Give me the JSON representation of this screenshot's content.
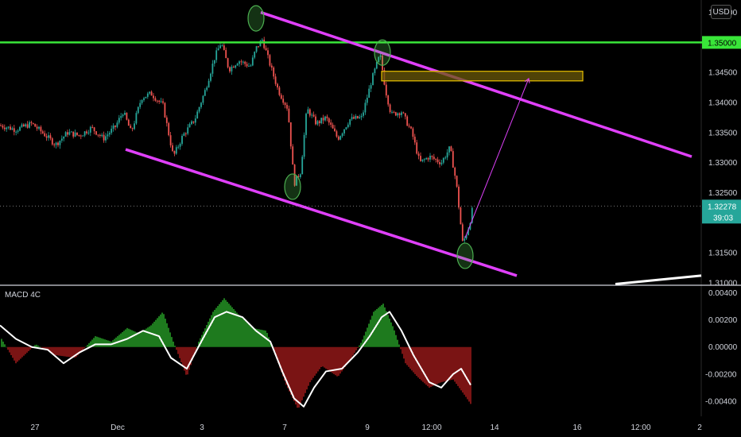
{
  "currency": "USD",
  "indicator_label": "MACD 4C",
  "current_price": "1.32278",
  "countdown": "39:03",
  "level_price": "1.35000",
  "colors": {
    "background": "#000000",
    "up_candle": "#26a69a",
    "down_candle": "#ef5350",
    "channel": "#e040fb",
    "resistance": "#39e639",
    "zone_fill": "#6b5a0a",
    "zone_border": "#e8c000",
    "macd_pos": "#33cc33",
    "macd_neg": "#cc2222",
    "signal": "#ffffff"
  },
  "chart_data": [
    {
      "type": "line",
      "series": [
        {
          "name": "",
          "values": []
        }
      ],
      "y_ticks": [
        "1.35500",
        "1.35000",
        "1.34500",
        "1.34000",
        "1.33500",
        "1.33000",
        "1.32500",
        "1.32000",
        "1.31500",
        "1.31000"
      ],
      "x_ticks": [
        "27",
        "Dec",
        "3",
        "7",
        "9",
        "12:00",
        "14",
        "16",
        "12:00",
        "2"
      ],
      "ylim": [
        1.31,
        1.356
      ],
      "close_path": [
        [
          0,
          1.3362
        ],
        [
          20,
          1.3355
        ],
        [
          40,
          1.3365
        ],
        [
          55,
          1.3348
        ],
        [
          70,
          1.333
        ],
        [
          85,
          1.335
        ],
        [
          100,
          1.3345
        ],
        [
          115,
          1.3358
        ],
        [
          130,
          1.334
        ],
        [
          145,
          1.336
        ],
        [
          155,
          1.3385
        ],
        [
          165,
          1.335
        ],
        [
          178,
          1.3408
        ],
        [
          190,
          1.3415
        ],
        [
          205,
          1.3395
        ],
        [
          218,
          1.331
        ],
        [
          230,
          1.3345
        ],
        [
          245,
          1.3372
        ],
        [
          258,
          1.342
        ],
        [
          270,
          1.3475
        ],
        [
          278,
          1.35
        ],
        [
          288,
          1.3455
        ],
        [
          300,
          1.347
        ],
        [
          315,
          1.346
        ],
        [
          322,
          1.349
        ],
        [
          330,
          1.3505
        ],
        [
          338,
          1.347
        ],
        [
          350,
          1.342
        ],
        [
          362,
          1.339
        ],
        [
          370,
          1.3265
        ],
        [
          378,
          1.3285
        ],
        [
          386,
          1.339
        ],
        [
          398,
          1.3365
        ],
        [
          410,
          1.3375
        ],
        [
          425,
          1.334
        ],
        [
          440,
          1.3372
        ],
        [
          455,
          1.3375
        ],
        [
          468,
          1.344
        ],
        [
          478,
          1.348
        ],
        [
          485,
          1.342
        ],
        [
          492,
          1.338
        ],
        [
          505,
          1.3385
        ],
        [
          518,
          1.335
        ],
        [
          528,
          1.33
        ],
        [
          540,
          1.331
        ],
        [
          555,
          1.33
        ],
        [
          566,
          1.3325
        ],
        [
          574,
          1.3265
        ],
        [
          582,
          1.3165
        ],
        [
          590,
          1.3195
        ],
        [
          595,
          1.3228
        ]
      ],
      "levels": [
        {
          "label": "1.35000",
          "value": 1.35
        }
      ],
      "channel_upper": [
        [
          328,
          1.355
        ],
        [
          870,
          1.331
        ]
      ],
      "channel_lower": [
        [
          158,
          1.3322
        ],
        [
          650,
          1.3112
        ]
      ],
      "zone": {
        "x1": 480,
        "x2": 733,
        "y_top": 1.3452,
        "y_bottom": 1.3436
      },
      "projection": [
        [
          585,
          1.3175
        ],
        [
          665,
          1.344
        ]
      ],
      "trendline_white": [
        [
          774,
          1.3098
        ],
        [
          882,
          1.3112
        ]
      ],
      "markers": [
        [
          322,
          1.354
        ],
        [
          481,
          1.3483
        ],
        [
          368,
          1.326
        ],
        [
          585,
          1.3145
        ]
      ],
      "grid": false
    },
    {
      "type": "bar",
      "title": "MACD 4C",
      "y_ticks": [
        "0.00400",
        "0.00200",
        "0.00000",
        "-0.00200",
        "-0.00400"
      ],
      "ylim": [
        -0.005,
        0.0045
      ],
      "histogram_path": [
        [
          0,
          0.0008
        ],
        [
          20,
          -0.0012
        ],
        [
          45,
          0.0002
        ],
        [
          70,
          -0.0006
        ],
        [
          95,
          -0.0008
        ],
        [
          120,
          0.0008
        ],
        [
          140,
          0.0004
        ],
        [
          160,
          0.0014
        ],
        [
          175,
          0.001
        ],
        [
          190,
          0.0016
        ],
        [
          205,
          0.0026
        ],
        [
          218,
          0.0004
        ],
        [
          235,
          -0.0022
        ],
        [
          250,
          0.0004
        ],
        [
          268,
          0.0026
        ],
        [
          282,
          0.0036
        ],
        [
          300,
          0.0024
        ],
        [
          318,
          0.0014
        ],
        [
          335,
          0.0012
        ],
        [
          345,
          -0.0004
        ],
        [
          360,
          -0.0028
        ],
        [
          375,
          -0.0046
        ],
        [
          390,
          -0.0026
        ],
        [
          405,
          -0.0014
        ],
        [
          425,
          -0.0022
        ],
        [
          440,
          -0.001
        ],
        [
          455,
          0.0004
        ],
        [
          470,
          0.0026
        ],
        [
          482,
          0.0032
        ],
        [
          495,
          0.0014
        ],
        [
          510,
          -0.0012
        ],
        [
          525,
          -0.0022
        ],
        [
          540,
          -0.003
        ],
        [
          555,
          -0.0026
        ],
        [
          570,
          -0.0024
        ],
        [
          585,
          -0.0036
        ],
        [
          592,
          -0.0042
        ]
      ],
      "signal_path": [
        [
          0,
          0.0016
        ],
        [
          20,
          0.0006
        ],
        [
          40,
          0.0
        ],
        [
          60,
          -0.0002
        ],
        [
          80,
          -0.0012
        ],
        [
          100,
          -0.0004
        ],
        [
          120,
          0.0002
        ],
        [
          140,
          0.0002
        ],
        [
          160,
          0.0006
        ],
        [
          180,
          0.0012
        ],
        [
          200,
          0.0008
        ],
        [
          215,
          -0.0008
        ],
        [
          235,
          -0.0016
        ],
        [
          255,
          0.0006
        ],
        [
          270,
          0.0022
        ],
        [
          285,
          0.0026
        ],
        [
          305,
          0.0022
        ],
        [
          322,
          0.0012
        ],
        [
          340,
          0.0004
        ],
        [
          355,
          -0.0018
        ],
        [
          370,
          -0.0038
        ],
        [
          382,
          -0.0044
        ],
        [
          395,
          -0.003
        ],
        [
          410,
          -0.0018
        ],
        [
          430,
          -0.0016
        ],
        [
          450,
          -0.0004
        ],
        [
          465,
          0.0008
        ],
        [
          480,
          0.0022
        ],
        [
          490,
          0.0026
        ],
        [
          505,
          0.0012
        ],
        [
          520,
          -0.0006
        ],
        [
          540,
          -0.0026
        ],
        [
          555,
          -0.003
        ],
        [
          570,
          -0.002
        ],
        [
          580,
          -0.0016
        ],
        [
          592,
          -0.0028
        ]
      ]
    }
  ]
}
